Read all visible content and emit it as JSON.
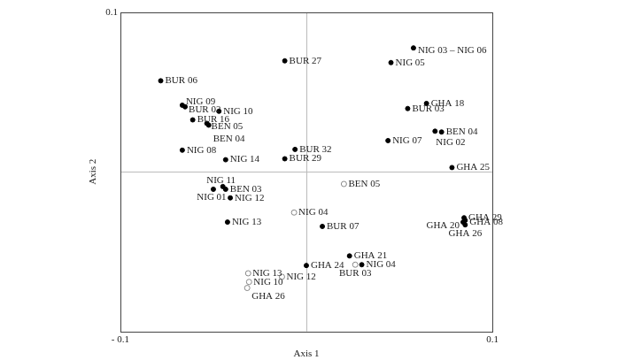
{
  "chart_data": {
    "type": "scatter",
    "x_label": "Axis 1",
    "y_label": "Axis 2",
    "xlim": [
      -0.1,
      0.1
    ],
    "ylim": [
      -0.1,
      0.1
    ],
    "xticks": [
      {
        "value": -0.1,
        "label": "- 0.1"
      },
      0.1
    ],
    "yticks": [
      0.1
    ],
    "grid": false,
    "series": [
      {
        "marker": "filled",
        "color": "#000000",
        "points": [
          {
            "label": "NIG 03 – NIG 06",
            "x": 0.0576,
            "y": 0.0777
          },
          {
            "label": "NIG 05",
            "x": 0.0455,
            "y": 0.0685
          },
          {
            "label": "BUR 27",
            "x": -0.0116,
            "y": 0.0696
          },
          {
            "label": "BUR 06",
            "x": -0.0783,
            "y": 0.0571
          },
          {
            "label": "NIG 09",
            "x": -0.0667,
            "y": 0.0418
          },
          {
            "label": "BUR 02",
            "x": -0.0652,
            "y": 0.0408
          },
          {
            "label": "NIG 10",
            "x": -0.047,
            "y": 0.038
          },
          {
            "label": "BUR 16",
            "x": -0.0611,
            "y": 0.0326
          },
          {
            "label": "BEN 05",
            "x": -0.0535,
            "y": 0.0304
          },
          {
            "label": "BEN 04",
            "x": -0.0525,
            "y": 0.0293
          },
          {
            "label": "GHA 18",
            "x": 0.0646,
            "y": 0.0429
          },
          {
            "label": "BUR 03",
            "x": 0.0545,
            "y": 0.0397
          },
          {
            "label": "NIG 02",
            "x": 0.0692,
            "y": 0.0255
          },
          {
            "label": "BEN 04",
            "x": 0.0727,
            "y": 0.025
          },
          {
            "label": "NIG 07",
            "x": 0.0439,
            "y": 0.0196
          },
          {
            "label": "GHA 25",
            "x": 0.0783,
            "y": 0.0027
          },
          {
            "label": "NIG 08",
            "x": -0.0667,
            "y": 0.0136
          },
          {
            "label": "NIG 14",
            "x": -0.0434,
            "y": 0.0076
          },
          {
            "label": "BUR 32",
            "x": -0.0061,
            "y": 0.0141
          },
          {
            "label": "BUR 29",
            "x": -0.0116,
            "y": 0.0082
          },
          {
            "label": "NIG 11",
            "x": -0.0449,
            "y": -0.0092
          },
          {
            "label": "BEN 03",
            "x": -0.0434,
            "y": -0.0109
          },
          {
            "label": "NIG 01",
            "x": -0.05,
            "y": -0.0109
          },
          {
            "label": "NIG 12",
            "x": -0.0409,
            "y": -0.0163
          },
          {
            "label": "NIG 13",
            "x": -0.0424,
            "y": -0.0315
          },
          {
            "label": "BUR 07",
            "x": 0.0086,
            "y": -0.0342
          },
          {
            "label": "GHA 29",
            "x": 0.0848,
            "y": -0.0288
          },
          {
            "label": "GHA 08",
            "x": 0.0854,
            "y": -0.0304
          },
          {
            "label": "GHA 20",
            "x": 0.0843,
            "y": -0.0315
          },
          {
            "label": "GHA 26",
            "x": 0.0854,
            "y": -0.0332
          },
          {
            "label": "GHA 21",
            "x": 0.0232,
            "y": -0.0527
          },
          {
            "label": "GHA 24",
            "x": 0.0,
            "y": -0.0587
          },
          {
            "label": "NIG 04",
            "x": 0.0298,
            "y": -0.0582
          }
        ]
      },
      {
        "marker": "open",
        "color": "#888888",
        "points": [
          {
            "label": "BEN 05",
            "x": 0.0202,
            "y": -0.0076
          },
          {
            "label": "NIG 04",
            "x": -0.0066,
            "y": -0.0255
          },
          {
            "label": "NIG 13",
            "x": -0.0313,
            "y": -0.0636
          },
          {
            "label": "NIG 12",
            "x": -0.0131,
            "y": -0.0658
          },
          {
            "label": "NIG 10",
            "x": -0.0308,
            "y": -0.069
          },
          {
            "label": "GHA 26",
            "x": -0.0318,
            "y": -0.0728
          },
          {
            "label": "BUR 03",
            "x": 0.0263,
            "y": -0.0582
          }
        ]
      }
    ]
  }
}
